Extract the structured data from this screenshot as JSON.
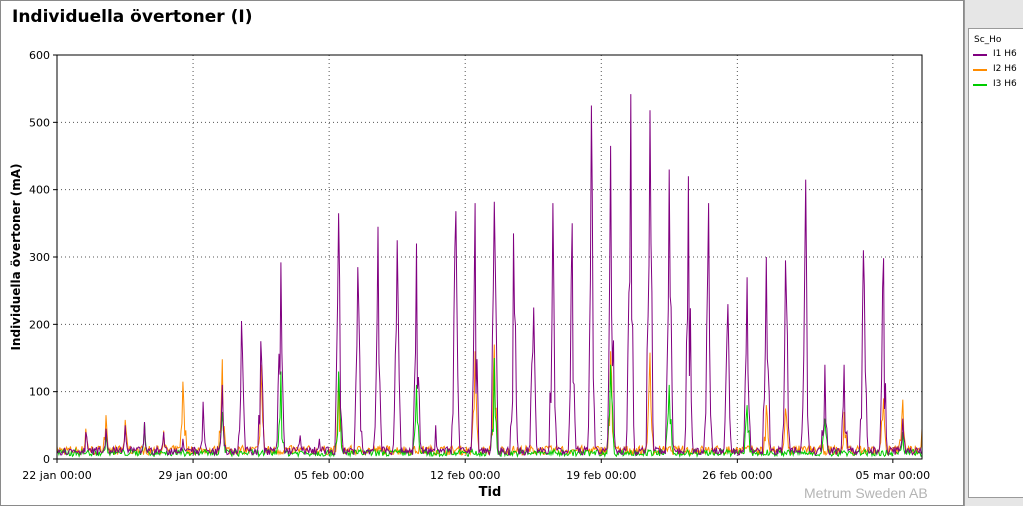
{
  "window": {
    "legend_header": "Sc_Ho",
    "watermark": "Metrum Sweden AB"
  },
  "chart_data": {
    "type": "line",
    "title": "Individuella övertoner (I)",
    "xlabel": "Tid",
    "ylabel": "Individuella övertoner (mA)",
    "ylim": [
      0,
      600
    ],
    "yticks": [
      0,
      100,
      200,
      300,
      400,
      500,
      600
    ],
    "xlim": [
      "2024-01-22 00:00",
      "2024-03-06 12:00"
    ],
    "xtick_labels": [
      "22 jan 00:00",
      "29 jan 00:00",
      "05 feb 00:00",
      "12 feb 00:00",
      "19 feb 00:00",
      "26 feb 00:00",
      "05 mar 00:00"
    ],
    "xtick_dates": [
      "2024-01-22",
      "2024-01-29",
      "2024-02-05",
      "2024-02-12",
      "2024-02-19",
      "2024-02-26",
      "2024-03-05"
    ],
    "grid": true,
    "legend_position": "right-panel",
    "series": [
      {
        "name": "I1 H6",
        "color": "#800080",
        "peaks": [
          {
            "date": "2024-01-23",
            "value": 40
          },
          {
            "date": "2024-01-24",
            "value": 45
          },
          {
            "date": "2024-01-25",
            "value": 50
          },
          {
            "date": "2024-01-26",
            "value": 55
          },
          {
            "date": "2024-01-27",
            "value": 40
          },
          {
            "date": "2024-01-28",
            "value": 30
          },
          {
            "date": "2024-01-29",
            "value": 85
          },
          {
            "date": "2024-01-30",
            "value": 110
          },
          {
            "date": "2024-01-31",
            "value": 205
          },
          {
            "date": "2024-02-01",
            "value": 175
          },
          {
            "date": "2024-02-02",
            "value": 292
          },
          {
            "date": "2024-02-03",
            "value": 35
          },
          {
            "date": "2024-02-04",
            "value": 30
          },
          {
            "date": "2024-02-05",
            "value": 365
          },
          {
            "date": "2024-02-06",
            "value": 285
          },
          {
            "date": "2024-02-07",
            "value": 345
          },
          {
            "date": "2024-02-08",
            "value": 325
          },
          {
            "date": "2024-02-09",
            "value": 320
          },
          {
            "date": "2024-02-10",
            "value": 50
          },
          {
            "date": "2024-02-11",
            "value": 368
          },
          {
            "date": "2024-02-12",
            "value": 380
          },
          {
            "date": "2024-02-13",
            "value": 382
          },
          {
            "date": "2024-02-14",
            "value": 335
          },
          {
            "date": "2024-02-15",
            "value": 225
          },
          {
            "date": "2024-02-16",
            "value": 380
          },
          {
            "date": "2024-02-17",
            "value": 350
          },
          {
            "date": "2024-02-18",
            "value": 525
          },
          {
            "date": "2024-02-19",
            "value": 465
          },
          {
            "date": "2024-02-20",
            "value": 542
          },
          {
            "date": "2024-02-21",
            "value": 518
          },
          {
            "date": "2024-02-22",
            "value": 430
          },
          {
            "date": "2024-02-23",
            "value": 420
          },
          {
            "date": "2024-02-24",
            "value": 380
          },
          {
            "date": "2024-02-25",
            "value": 230
          },
          {
            "date": "2024-02-26",
            "value": 270
          },
          {
            "date": "2024-02-27",
            "value": 300
          },
          {
            "date": "2024-02-28",
            "value": 295
          },
          {
            "date": "2024-02-29",
            "value": 415
          },
          {
            "date": "2024-03-01",
            "value": 140
          },
          {
            "date": "2024-03-02",
            "value": 140
          },
          {
            "date": "2024-03-03",
            "value": 310
          },
          {
            "date": "2024-03-04",
            "value": 298
          },
          {
            "date": "2024-03-05",
            "value": 60
          }
        ]
      },
      {
        "name": "I2 H6",
        "color": "#ff8c00",
        "peaks": [
          {
            "date": "2024-01-23",
            "value": 45
          },
          {
            "date": "2024-01-24",
            "value": 65
          },
          {
            "date": "2024-01-25",
            "value": 58
          },
          {
            "date": "2024-01-27",
            "value": 42
          },
          {
            "date": "2024-01-28",
            "value": 115
          },
          {
            "date": "2024-01-30",
            "value": 148
          },
          {
            "date": "2024-02-01",
            "value": 140
          },
          {
            "date": "2024-02-05",
            "value": 120
          },
          {
            "date": "2024-02-12",
            "value": 160
          },
          {
            "date": "2024-02-13",
            "value": 170
          },
          {
            "date": "2024-02-19",
            "value": 160
          },
          {
            "date": "2024-02-21",
            "value": 158
          },
          {
            "date": "2024-02-27",
            "value": 80
          },
          {
            "date": "2024-02-28",
            "value": 75
          },
          {
            "date": "2024-03-02",
            "value": 70
          },
          {
            "date": "2024-03-04",
            "value": 90
          },
          {
            "date": "2024-03-05",
            "value": 88
          },
          {
            "date": "2024-03-06",
            "value": 45
          }
        ]
      },
      {
        "name": "I3 H6",
        "color": "#00cc00",
        "peaks": [
          {
            "date": "2024-01-24",
            "value": 35
          },
          {
            "date": "2024-01-26",
            "value": 55
          },
          {
            "date": "2024-01-30",
            "value": 70
          },
          {
            "date": "2024-02-02",
            "value": 130
          },
          {
            "date": "2024-02-05",
            "value": 130
          },
          {
            "date": "2024-02-09",
            "value": 110
          },
          {
            "date": "2024-02-13",
            "value": 150
          },
          {
            "date": "2024-02-19",
            "value": 140
          },
          {
            "date": "2024-02-22",
            "value": 110
          },
          {
            "date": "2024-02-26",
            "value": 80
          },
          {
            "date": "2024-03-01",
            "value": 60
          },
          {
            "date": "2024-03-05",
            "value": 40
          }
        ]
      }
    ]
  }
}
